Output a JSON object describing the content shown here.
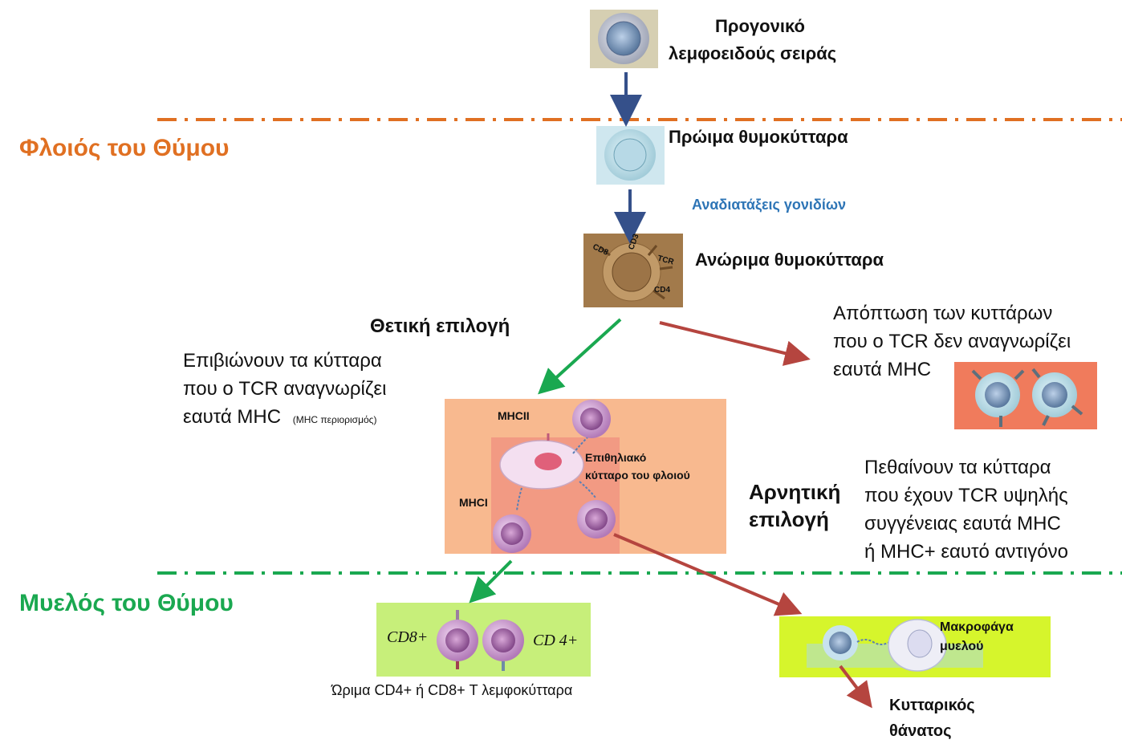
{
  "zones": {
    "cortex": "Φλοιός του Θύμου",
    "medulla": "Μυελός του Θύμου"
  },
  "cells": {
    "progenitor_line1": "Προγονικό",
    "progenitor_line2": "λεμφοειδούς σειράς",
    "early": "Πρώιμα θυμοκύτταρα",
    "gene_rearrangement": "Αναδιατάξεις γονιδίων",
    "immature": "Ανώριμα θυμοκύτταρα",
    "immature_markers": {
      "cd8": "CD8",
      "cd3": "CD3",
      "tcr": "TCR",
      "cd4": "CD4"
    }
  },
  "positive_selection": {
    "title": "Θετική επιλογή",
    "line1": "Επιβιώνουν τα κύτταρα",
    "line2": "που ο TCR αναγνωρίζει",
    "line3": "εαυτά MHC",
    "note": "(MHC περιορισμός)"
  },
  "apoptosis": {
    "line1": "Απόπτωση των κυττάρων",
    "line2": "που ο TCR δεν αναγνωρίζει",
    "line3": "εαυτά MHC"
  },
  "cortex_panel": {
    "mhcii": "MHCII",
    "mhci": "MHCI",
    "epithelial_line1": "Επιθηλιακό",
    "epithelial_line2": "κύτταρο του φλοιού"
  },
  "negative_selection": {
    "title_line1": "Αρνητική",
    "title_line2": "επιλογή",
    "line1": "Πεθαίνουν  τα κύτταρα",
    "line2": "που έχουν TCR υψηλής",
    "line3": "συγγένειας εαυτά MHC",
    "line4": "ή MHC+ εαυτό αντιγόνο"
  },
  "mature": {
    "cd8": "CD8+",
    "cd4": "CD 4+",
    "caption": "Ώριμα CD4+ ή CD8+  Τ λεμφοκύτταρα"
  },
  "macrophage": {
    "line1": "Μακροφάγα",
    "line2": "μυελού"
  },
  "death": {
    "line1": "Κυτταρικός",
    "line2": "θάνατος"
  },
  "colors": {
    "cortex": "#e07022",
    "medulla": "#1aa850",
    "gene_text": "#2e75b6",
    "arrow_blue": "#35508a",
    "arrow_green": "#1aa850",
    "arrow_red": "#b5453f"
  }
}
